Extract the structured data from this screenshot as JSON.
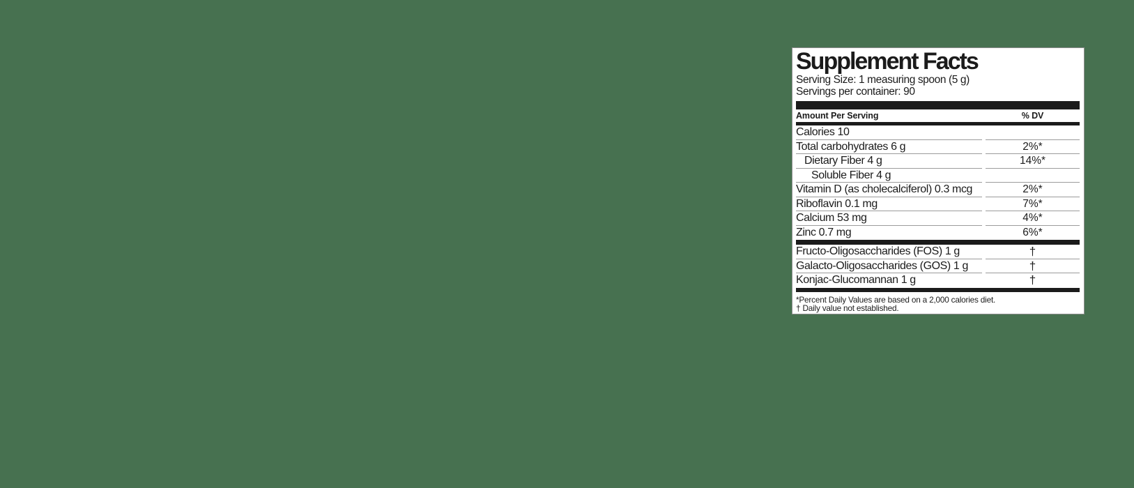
{
  "background_color": "#477150",
  "panel": {
    "title": "Supplement Facts",
    "serving_size": "Serving Size: 1 measuring spoon (5 g)",
    "servings_per_container": "Servings per container: 90",
    "header": {
      "amount_label": "Amount Per Serving",
      "dv_label": "% DV"
    },
    "sections": [
      {
        "rows": [
          {
            "name": "Calories 10",
            "dv": "",
            "indent": 0
          },
          {
            "name": "Total carbohydrates 6 g",
            "dv": "2%*",
            "indent": 0
          },
          {
            "name": "Dietary Fiber 4 g",
            "dv": "14%*",
            "indent": 1
          },
          {
            "name": "Soluble Fiber 4 g",
            "dv": "",
            "indent": 2
          },
          {
            "name": "Vitamin D (as cholecalciferol) 0.3 mcg",
            "dv": "2%*",
            "indent": 0
          },
          {
            "name": "Riboflavin 0.1 mg",
            "dv": "7%*",
            "indent": 0
          },
          {
            "name": "Calcium 53 mg",
            "dv": "4%*",
            "indent": 0
          },
          {
            "name": "Zinc 0.7 mg",
            "dv": "6%*",
            "indent": 0
          }
        ]
      },
      {
        "rows": [
          {
            "name": "Fructo-Oligosaccharides (FOS) 1 g",
            "dv": "†",
            "indent": 0
          },
          {
            "name": "Galacto-Oligosaccharides (GOS) 1 g",
            "dv": "†",
            "indent": 0
          },
          {
            "name": "Konjac-Glucomannan 1 g",
            "dv": "†",
            "indent": 0
          }
        ]
      }
    ],
    "footnotes": [
      "*Percent Daily Values are based on a 2,000 calories diet.",
      "† Daily value not established."
    ],
    "colors": {
      "bar": "#1b1b1b",
      "hairline": "#9b9b9b",
      "panel_bg": "#ffffff"
    }
  }
}
